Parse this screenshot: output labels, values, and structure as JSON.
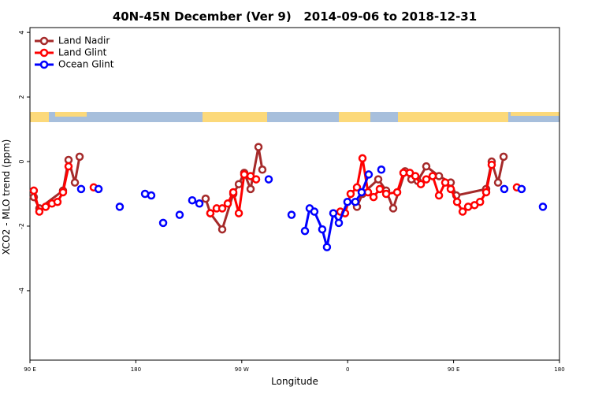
{
  "chart_data": {
    "type": "line",
    "title": "40N-45N December (Ver 9)   2014-09-06 to 2018-12-31",
    "x_label": "Longitude",
    "y_label": "XCO2 - MLO trend (ppm)",
    "xlim": [
      90,
      540
    ],
    "xticks": [
      {
        "value": 90,
        "label": "90 E"
      },
      180,
      {
        "value": 270,
        "label": "90 W"
      },
      {
        "value": 360,
        "label": "0"
      },
      {
        "value": 450,
        "label": "90 E"
      },
      {
        "value": 540,
        "label": "180"
      }
    ],
    "ylim": [
      -6.15,
      4.15
    ],
    "yticks": [
      -4,
      -2,
      0,
      2,
      4
    ],
    "legend": "top-left",
    "series": [
      {
        "name": "Land Nadir",
        "color": "#a52a2a",
        "x": [
          93.3,
          98.0,
          118.1,
          122.8,
          128.2,
          132.2,
          null,
          239.3,
          243.3,
          253.4,
          262.8,
          267.5,
          272.1,
          277.5,
          284.2,
          287.5,
          null,
          367.9,
          372.6,
          386.0,
          392.7,
          398.7,
          408.8,
          414.1,
          419.5,
          426.8,
          437.6,
          447.6,
          452.3,
          477.7,
          482.4,
          487.8,
          492.5
        ],
        "values": [
          -1.1,
          -1.45,
          -0.9,
          0.05,
          -0.65,
          0.15,
          null,
          -1.15,
          -1.6,
          -2.1,
          -1.0,
          -0.7,
          -0.35,
          -0.85,
          0.45,
          -0.25,
          null,
          -1.4,
          -1.0,
          -0.55,
          -0.9,
          -1.45,
          -0.3,
          -0.55,
          -0.6,
          -0.15,
          -0.45,
          -0.65,
          -1.05,
          -0.85,
          0.0,
          -0.65,
          0.15
        ]
      },
      {
        "name": "Land Glint",
        "color": "#ff0000",
        "x": [
          93.3,
          98.0,
          103.4,
          108.7,
          113.4,
          118.1,
          122.8,
          null,
          144.2,
          null,
          243.3,
          248.7,
          253.4,
          258.1,
          262.8,
          267.5,
          272.1,
          277.5,
          282.2,
          null,
          353.8,
          357.8,
          362.5,
          367.9,
          372.6,
          377.3,
          382.0,
          387.3,
          392.7,
          402.1,
          407.4,
          412.8,
          417.5,
          422.2,
          426.8,
          432.2,
          437.6,
          442.9,
          447.6,
          453.0,
          457.7,
          462.4,
          467.8,
          472.5,
          477.7,
          482.4,
          null,
          503.8
        ],
        "values": [
          -0.9,
          -1.55,
          -1.4,
          -1.3,
          -1.25,
          -0.95,
          -0.15,
          null,
          -0.8,
          null,
          -1.6,
          -1.45,
          -1.45,
          -1.3,
          -0.95,
          -1.6,
          -0.4,
          -0.45,
          -0.55,
          null,
          -1.55,
          -1.6,
          -1.0,
          -0.8,
          0.1,
          -0.95,
          -1.1,
          -0.85,
          -1.0,
          -0.95,
          -0.35,
          -0.35,
          -0.45,
          -0.7,
          -0.55,
          -0.45,
          -1.05,
          -0.65,
          -0.85,
          -1.25,
          -1.55,
          -1.4,
          -1.35,
          -1.25,
          -0.95,
          -0.1,
          null,
          -0.8
        ]
      },
      {
        "name": "Ocean Glint",
        "color": "#0000ff",
        "x": [
          133.5,
          null,
          148.3,
          null,
          166.3,
          null,
          187.8,
          193.1,
          null,
          203.2,
          null,
          217.2,
          null,
          227.9,
          234.0,
          null,
          292.9,
          null,
          312.3,
          null,
          323.7,
          327.7,
          331.7,
          338.4,
          342.4,
          347.8,
          352.5,
          359.8,
          366.5,
          371.9,
          377.9,
          null,
          388.6,
          null,
          493.1,
          null,
          507.8,
          null,
          525.9
        ],
        "values": [
          -0.85,
          null,
          -0.85,
          null,
          -1.4,
          null,
          -1.0,
          -1.05,
          null,
          -1.9,
          null,
          -1.65,
          null,
          -1.2,
          -1.3,
          null,
          -0.55,
          null,
          -1.65,
          null,
          -2.15,
          -1.45,
          -1.55,
          -2.1,
          -2.65,
          -1.6,
          -1.9,
          -1.25,
          -1.25,
          -0.95,
          -0.4,
          null,
          -0.25,
          null,
          -0.85,
          null,
          -0.85,
          null,
          -1.4
        ]
      }
    ]
  }
}
